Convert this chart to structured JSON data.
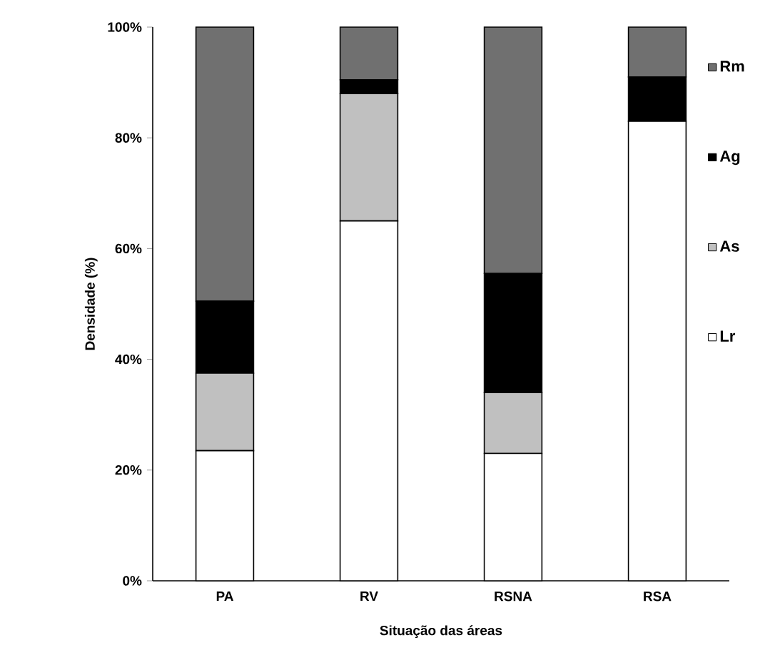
{
  "chart_data": {
    "type": "bar",
    "stacked": true,
    "xlabel": "Situação das áreas",
    "ylabel": "Densidade (%)",
    "categories": [
      "PA",
      "RV",
      "RSNA",
      "RSA"
    ],
    "series": [
      {
        "name": "Lr",
        "color": "#ffffff",
        "values": [
          23.5,
          65,
          23,
          83
        ]
      },
      {
        "name": "As",
        "color": "#c0c0c0",
        "values": [
          14,
          23,
          11,
          0
        ]
      },
      {
        "name": "Ag",
        "color": "#000000",
        "values": [
          13,
          2.5,
          21.5,
          8
        ]
      },
      {
        "name": "Rm",
        "color": "#707070",
        "values": [
          49.5,
          9.5,
          44.5,
          9
        ]
      }
    ],
    "ylim": [
      0,
      100
    ],
    "yticks": [
      {
        "value": 0,
        "label": "0%"
      },
      {
        "value": 20,
        "label": "20%"
      },
      {
        "value": 40,
        "label": "40%"
      },
      {
        "value": 60,
        "label": "60%"
      },
      {
        "value": 80,
        "label": "80%"
      },
      {
        "value": 100,
        "label": "100%"
      }
    ],
    "legend": "right",
    "grid": false
  }
}
